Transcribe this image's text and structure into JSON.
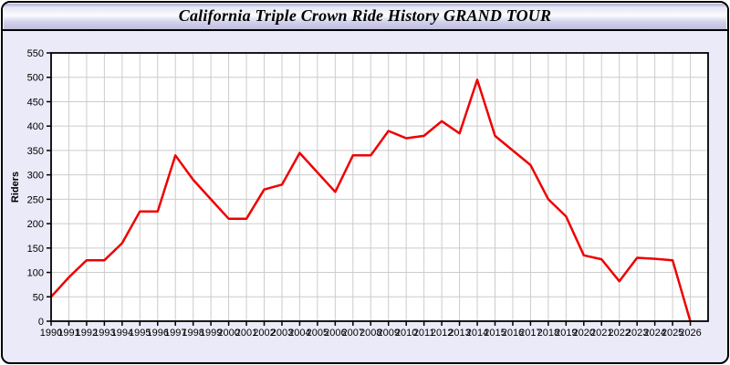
{
  "page": {
    "title": "California Triple Crown Ride History GRAND TOUR"
  },
  "colors": {
    "frame_border": "#000000",
    "body_background": "#eaeaf8",
    "plot_background": "#ffffff",
    "gridline": "#cccccc",
    "axis": "#000000",
    "line": "#ee0000"
  },
  "chart_data": {
    "type": "line",
    "title": "California Triple Crown Ride History GRAND TOUR",
    "xlabel": "",
    "ylabel": "Riders",
    "x": [
      1990,
      1991,
      1992,
      1993,
      1994,
      1995,
      1996,
      1997,
      1998,
      1999,
      2000,
      2001,
      2002,
      2003,
      2004,
      2005,
      2006,
      2007,
      2008,
      2009,
      2010,
      2011,
      2012,
      2013,
      2014,
      2015,
      2016,
      2017,
      2018,
      2019,
      2020,
      2021,
      2022,
      2023,
      2024,
      2025,
      2026
    ],
    "series": [
      {
        "name": "Riders",
        "color": "#ee0000",
        "values": [
          50,
          90,
          125,
          125,
          160,
          225,
          225,
          340,
          290,
          250,
          210,
          210,
          270,
          280,
          345,
          305,
          265,
          340,
          340,
          390,
          375,
          380,
          410,
          385,
          495,
          380,
          350,
          320,
          250,
          215,
          135,
          127,
          82,
          130,
          128,
          125,
          0
        ]
      }
    ],
    "ylim": [
      0,
      550
    ],
    "ytick_step": 50,
    "grid": true,
    "legend": false
  }
}
